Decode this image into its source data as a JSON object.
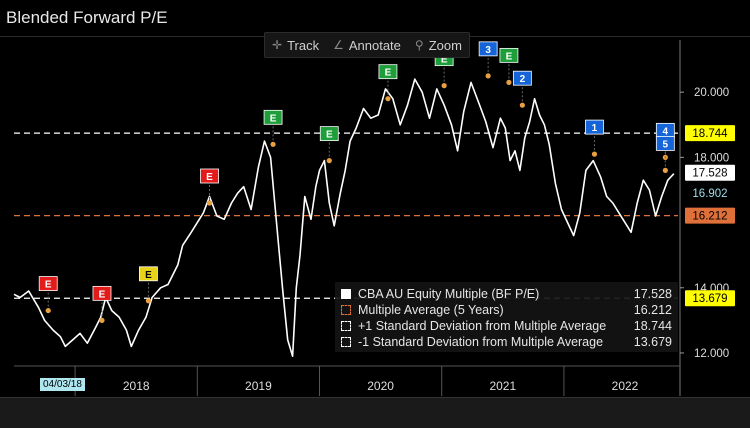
{
  "title": "Blended Forward P/E",
  "toolbar": {
    "track": "Track",
    "annotate": "Annotate",
    "zoom": "Zoom"
  },
  "legend": [
    {
      "label": "CBA AU Equity Multiple (BF P/E)",
      "value": "17.528",
      "color": "#ffffff",
      "style": "solid"
    },
    {
      "label": "Multiple Average (5 Years)",
      "value": "16.212",
      "color": "#e0703a",
      "style": "outline"
    },
    {
      "label": "+1 Standard Deviation from Multiple Average",
      "value": "18.744",
      "color": "#ffffff",
      "style": "outline"
    },
    {
      "label": "-1 Standard Deviation from Multiple Average",
      "value": "13.679",
      "color": "#ffffff",
      "style": "outline"
    }
  ],
  "date_marker": "04/03/18",
  "chart_data": {
    "type": "line",
    "title": "Blended Forward P/E",
    "xlabel": "",
    "ylabel": "",
    "ylim": [
      11.6,
      21.6
    ],
    "yticks": [
      12.0,
      14.0,
      18.0,
      20.0
    ],
    "ytick_labels": [
      "12.000",
      "14.000",
      "18.000",
      "20.000"
    ],
    "xlim": [
      2017.5,
      2022.95
    ],
    "year_labels": [
      "2018",
      "2019",
      "2020",
      "2021",
      "2022"
    ],
    "year_positions": [
      2018.5,
      2019.5,
      2020.5,
      2021.5,
      2022.5
    ],
    "year_dividers": [
      2018,
      2019,
      2020,
      2021,
      2022
    ],
    "series": [
      {
        "name": "CBA AU Equity Multiple (BF P/E)",
        "color": "#ffffff",
        "x": [
          2017.5,
          2017.55,
          2017.62,
          2017.7,
          2017.75,
          2017.82,
          2017.88,
          2017.92,
          2017.98,
          2018.04,
          2018.1,
          2018.17,
          2018.21,
          2018.25,
          2018.3,
          2018.36,
          2018.42,
          2018.46,
          2018.52,
          2018.58,
          2018.63,
          2018.7,
          2018.76,
          2018.84,
          2018.88,
          2018.95,
          2019.0,
          2019.05,
          2019.1,
          2019.16,
          2019.22,
          2019.28,
          2019.33,
          2019.38,
          2019.44,
          2019.5,
          2019.55,
          2019.6,
          2019.66,
          2019.7,
          2019.74,
          2019.78,
          2019.81,
          2019.84,
          2019.88,
          2019.93,
          2019.97,
          2020.0,
          2020.04,
          2020.08,
          2020.12,
          2020.17,
          2020.21,
          2020.25,
          2020.3,
          2020.36,
          2020.42,
          2020.48,
          2020.54,
          2020.6,
          2020.66,
          2020.72,
          2020.78,
          2020.84,
          2020.9,
          2020.96,
          2021.02,
          2021.08,
          2021.13,
          2021.18,
          2021.24,
          2021.3,
          2021.36,
          2021.42,
          2021.48,
          2021.52,
          2021.56,
          2021.6,
          2021.64,
          2021.68,
          2021.72,
          2021.76,
          2021.8,
          2021.84,
          2021.88,
          2021.93,
          2021.98,
          2022.03,
          2022.08,
          2022.13,
          2022.18,
          2022.24,
          2022.3,
          2022.35,
          2022.4,
          2022.45,
          2022.5,
          2022.55,
          2022.6,
          2022.65,
          2022.7,
          2022.75,
          2022.8,
          2022.85,
          2022.9
        ],
        "y": [
          13.8,
          13.7,
          13.9,
          13.4,
          13.0,
          12.7,
          12.5,
          12.2,
          12.4,
          12.6,
          12.3,
          12.8,
          13.1,
          13.7,
          13.3,
          13.1,
          12.7,
          12.2,
          12.7,
          13.1,
          13.7,
          14.0,
          14.1,
          14.7,
          15.3,
          15.7,
          16.0,
          16.3,
          16.8,
          16.2,
          16.1,
          16.6,
          16.9,
          17.1,
          16.4,
          17.7,
          18.5,
          18.0,
          15.5,
          13.9,
          12.4,
          11.9,
          14.0,
          15.0,
          16.8,
          16.1,
          17.1,
          17.6,
          17.9,
          16.6,
          15.9,
          16.9,
          17.6,
          18.5,
          18.9,
          19.5,
          19.2,
          19.3,
          20.1,
          19.8,
          19.0,
          19.6,
          20.4,
          20.0,
          19.2,
          20.1,
          19.6,
          19.0,
          18.2,
          19.4,
          20.3,
          19.7,
          19.1,
          18.3,
          19.2,
          18.9,
          17.9,
          18.2,
          17.6,
          18.6,
          19.1,
          19.8,
          19.3,
          19.0,
          18.4,
          17.2,
          16.4,
          16.0,
          15.6,
          16.3,
          17.6,
          17.9,
          17.4,
          16.8,
          16.6,
          16.3,
          16.0,
          15.7,
          16.6,
          17.3,
          17.0,
          16.2,
          16.8,
          17.3,
          17.5
        ]
      },
      {
        "name": "Multiple Average (5 Years)",
        "color": "#e0703a",
        "value": 16.212,
        "dash": true
      },
      {
        "name": "+1 Standard Deviation from Multiple Average",
        "color": "#ffffff",
        "value": 18.744,
        "dash": true
      },
      {
        "name": "-1 Standard Deviation from Multiple Average",
        "color": "#ffffff",
        "value": 13.679,
        "dash": true
      }
    ],
    "right_labels": [
      {
        "value": 18.744,
        "text": "18.744",
        "bg": "#ffff00",
        "fg": "#000000"
      },
      {
        "value": 17.528,
        "text": "17.528",
        "bg": "#ffffff",
        "fg": "#000000"
      },
      {
        "value": 16.902,
        "text": "16.902",
        "bg": "#000000",
        "fg": "#9adfe8"
      },
      {
        "value": 16.212,
        "text": "16.212",
        "bg": "#e0703a",
        "fg": "#000000"
      },
      {
        "value": 13.679,
        "text": "13.679",
        "bg": "#ffff00",
        "fg": "#000000"
      }
    ],
    "event_markers": [
      {
        "x": 2017.78,
        "y": 13.3,
        "text": "E",
        "color": "#e31b1b"
      },
      {
        "x": 2018.22,
        "y": 13.0,
        "text": "E",
        "color": "#e31b1b"
      },
      {
        "x": 2018.6,
        "y": 13.6,
        "text": "E",
        "color": "#e8d31a"
      },
      {
        "x": 2019.1,
        "y": 16.6,
        "text": "E",
        "color": "#e31b1b"
      },
      {
        "x": 2019.62,
        "y": 18.4,
        "text": "E",
        "color": "#1e9e3a"
      },
      {
        "x": 2020.08,
        "y": 17.9,
        "text": "E",
        "color": "#1e9e3a"
      },
      {
        "x": 2020.56,
        "y": 19.8,
        "text": "E",
        "color": "#1e9e3a"
      },
      {
        "x": 2021.02,
        "y": 20.2,
        "text": "E",
        "color": "#1e9e3a"
      },
      {
        "x": 2021.38,
        "y": 20.5,
        "text": "3",
        "color": "#1565d8"
      },
      {
        "x": 2021.55,
        "y": 20.3,
        "text": "E",
        "color": "#1e9e3a"
      },
      {
        "x": 2021.66,
        "y": 19.6,
        "text": "2",
        "color": "#1565d8"
      },
      {
        "x": 2022.25,
        "y": 18.1,
        "text": "1",
        "color": "#1565d8"
      },
      {
        "x": 2022.83,
        "y": 18.0,
        "text": "4",
        "color": "#1565d8"
      },
      {
        "x": 2022.83,
        "y": 17.6,
        "text": "5",
        "color": "#1565d8"
      }
    ]
  }
}
